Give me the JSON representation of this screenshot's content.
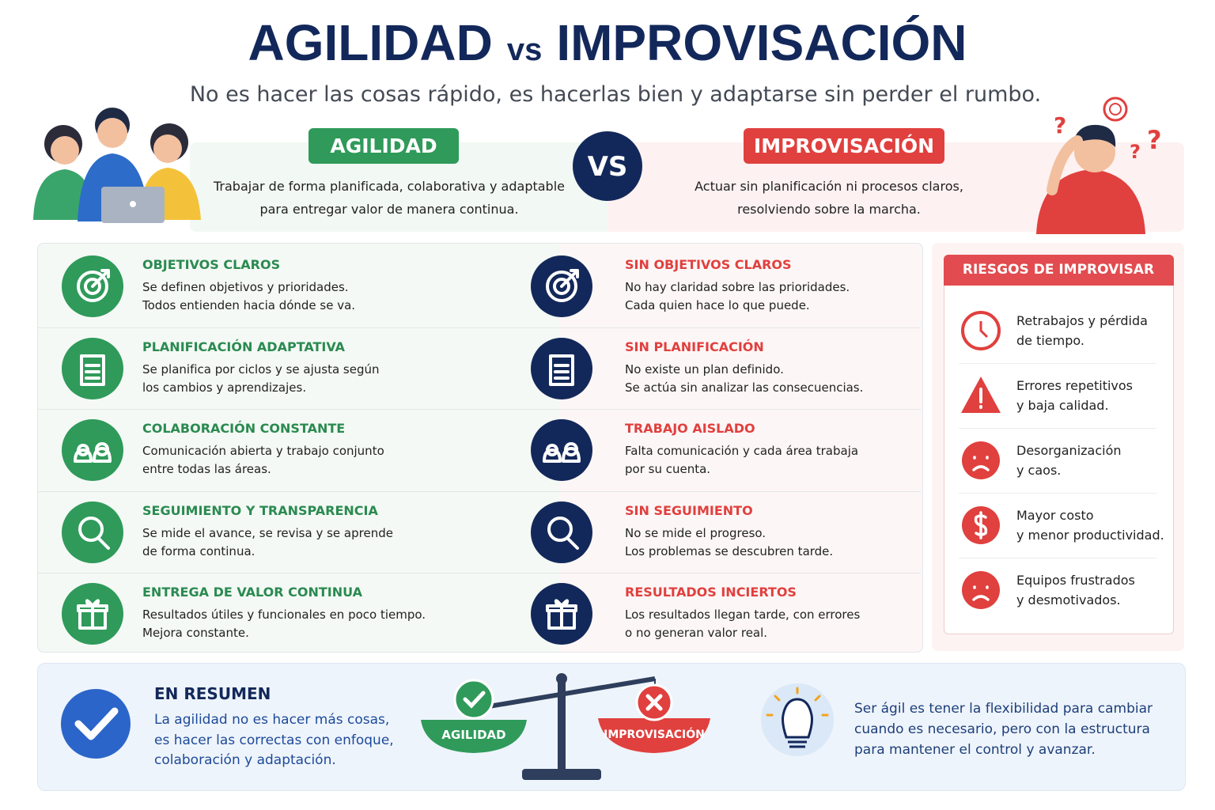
{
  "header": {
    "title_left": "AGILIDAD",
    "title_vs": "vs",
    "title_right": "IMPROVISACIÓN",
    "subtitle": "No es hacer las cosas rápido, es hacerlas bien y adaptarse sin perder el rumbo."
  },
  "intro": {
    "agility": {
      "label": "AGILIDAD",
      "lines": [
        "Trabajar de forma planificada, colaborativa y adaptable",
        "para entregar valor de manera continua."
      ]
    },
    "vs": "VS",
    "improvisation": {
      "label": "IMPROVISACIÓN",
      "lines": [
        "Actuar sin planificación ni procesos claros,",
        "resolviendo sobre la marcha."
      ]
    }
  },
  "comparison": {
    "agility": [
      {
        "title": "OBJETIVOS CLAROS",
        "lines": [
          "Se definen objetivos y prioridades.",
          "Todos entienden hacia dónde se va."
        ]
      },
      {
        "title": "PLANIFICACIÓN ADAPTATIVA",
        "lines": [
          "Se planifica por ciclos y se ajusta según",
          "los cambios y aprendizajes."
        ]
      },
      {
        "title": "COLABORACIÓN CONSTANTE",
        "lines": [
          "Comunicación abierta y trabajo conjunto",
          "entre todas las áreas."
        ]
      },
      {
        "title": "SEGUIMIENTO Y TRANSPARENCIA",
        "lines": [
          "Se mide el avance, se revisa y se aprende",
          "de forma continua."
        ]
      },
      {
        "title": "ENTREGA DE VALOR CONTINUA",
        "lines": [
          "Resultados útiles y funcionales en poco tiempo.",
          "Mejora constante."
        ]
      }
    ],
    "improvisation": [
      {
        "title": "SIN OBJETIVOS CLAROS",
        "lines": [
          "No hay claridad sobre las prioridades.",
          "Cada quien hace lo que puede."
        ]
      },
      {
        "title": "SIN PLANIFICACIÓN",
        "lines": [
          "No existe un plan definido.",
          "Se actúa sin analizar las consecuencias."
        ]
      },
      {
        "title": "TRABAJO AISLADO",
        "lines": [
          "Falta comunicación y cada área trabaja",
          "por su cuenta."
        ]
      },
      {
        "title": "SIN SEGUIMIENTO",
        "lines": [
          "No se mide el progreso.",
          "Los problemas se descubren tarde."
        ]
      },
      {
        "title": "RESULTADOS INCIERTOS",
        "lines": [
          "Los resultados llegan tarde, con errores",
          "o no generan valor real."
        ]
      }
    ]
  },
  "risks": {
    "title": "RIESGOS DE IMPROVISAR",
    "items": [
      {
        "lines": [
          "Retrabajos y pérdida",
          "de tiempo."
        ]
      },
      {
        "lines": [
          "Errores repetitivos",
          "y baja calidad."
        ]
      },
      {
        "lines": [
          "Desorganización",
          "y caos."
        ]
      },
      {
        "lines": [
          "Mayor costo",
          "y menor productividad."
        ]
      },
      {
        "lines": [
          "Equipos frustrados",
          "y desmotivados."
        ]
      }
    ]
  },
  "summary": {
    "title": "EN RESUMEN",
    "lines": [
      "La agilidad no es hacer más cosas,",
      "es hacer las correctas con enfoque,",
      "colaboración y adaptación."
    ],
    "scale_left": "AGILIDAD",
    "scale_right": "IMPROVISACIÓN",
    "closing": [
      "Ser ágil es tener la flexibilidad para cambiar",
      "cuando es necesario, pero con la estructura",
      "para mantener el control y avanzar."
    ]
  }
}
